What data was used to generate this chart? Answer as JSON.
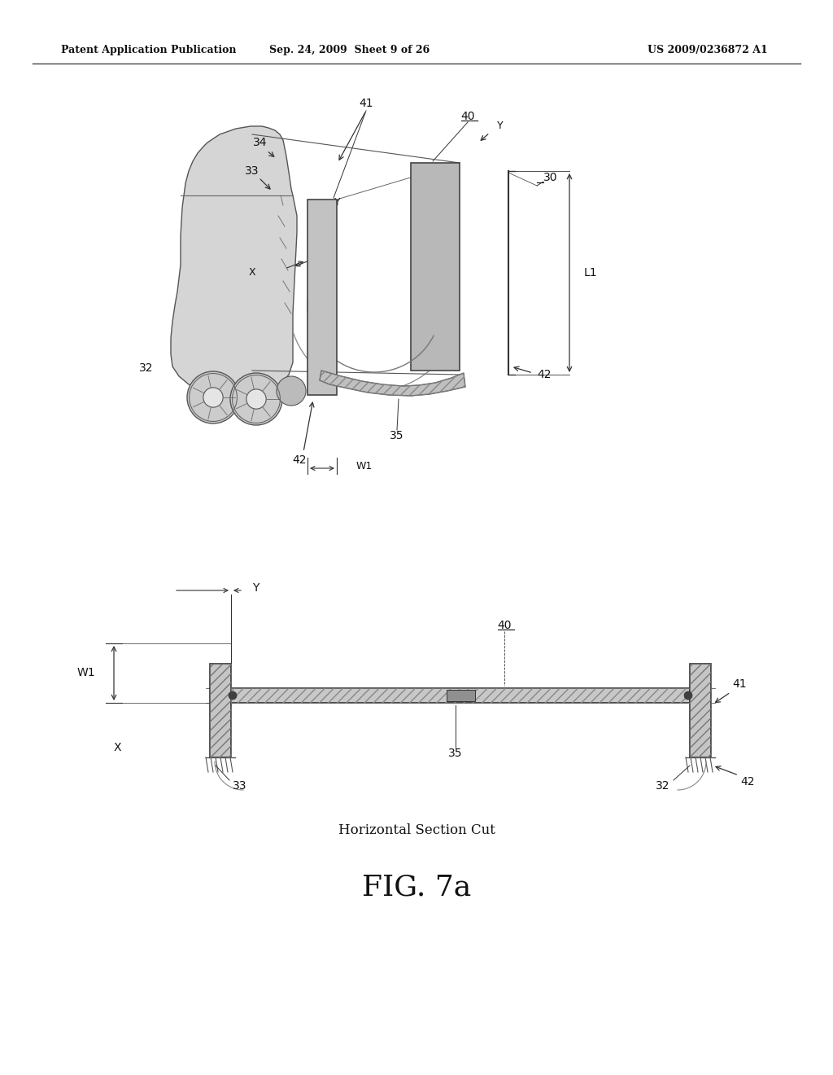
{
  "bg_color": "#ffffff",
  "header_left": "Patent Application Publication",
  "header_mid": "Sep. 24, 2009  Sheet 9 of 26",
  "header_right": "US 2009/0236872 A1",
  "fig_label": "FIG. 7a",
  "caption": "Horizontal Section Cut",
  "line_color": "#333333",
  "text_color": "#111111",
  "fill_panel": "#c0c0c0",
  "fill_rear": "#d0d0d0",
  "fill_cab": "#d8d8d8",
  "fill_hatch": "#c8c8c8"
}
